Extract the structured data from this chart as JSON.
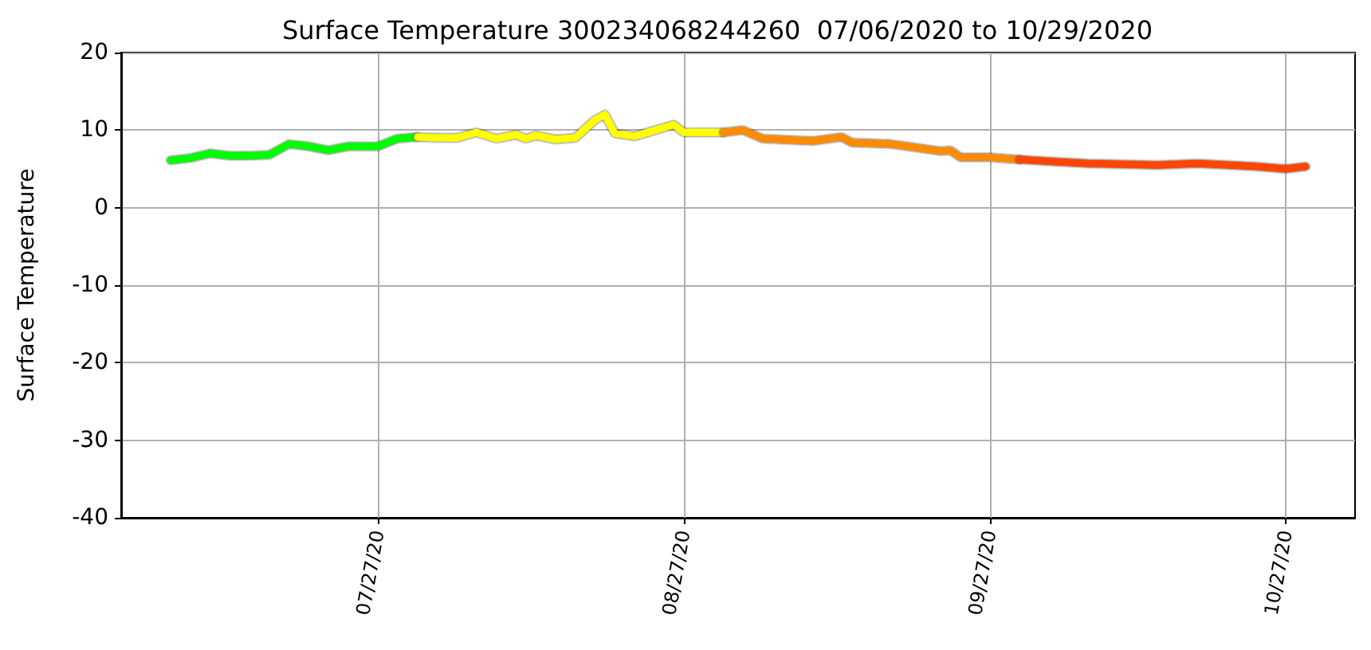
{
  "chart_data": {
    "type": "line",
    "title": "Surface Temperature 300234068244260  07/06/2020 to 10/29/2020",
    "ylabel": "Surface Temperature",
    "xlim": [
      "2020-07-01",
      "2020-11-03"
    ],
    "ylim": [
      -40,
      20
    ],
    "yticks": [
      -40,
      -30,
      -20,
      -10,
      0,
      10,
      20
    ],
    "xticks": [
      {
        "value": "2020-07-27",
        "label": "07/27/20"
      },
      {
        "value": "2020-08-27",
        "label": "08/27/20"
      },
      {
        "value": "2020-09-27",
        "label": "09/27/20"
      },
      {
        "value": "2020-10-27",
        "label": "10/27/20"
      }
    ],
    "grid": true,
    "marker": "none",
    "line_style": "solid",
    "series": [
      {
        "color": "#00ff00",
        "x": [
          "2020-07-06",
          "2020-07-08",
          "2020-07-10",
          "2020-07-12",
          "2020-07-14",
          "2020-07-16",
          "2020-07-18",
          "2020-07-20",
          "2020-07-22",
          "2020-07-24",
          "2020-07-27",
          "2020-07-29",
          "2020-07-31"
        ],
        "values": [
          6.1,
          6.4,
          7.0,
          6.7,
          6.7,
          6.8,
          8.2,
          7.9,
          7.4,
          7.9,
          7.9,
          8.9,
          9.1
        ]
      },
      {
        "color": "#ffff00",
        "x": [
          "2020-07-31",
          "2020-08-02",
          "2020-08-04",
          "2020-08-06",
          "2020-08-08",
          "2020-08-10",
          "2020-08-11",
          "2020-08-12",
          "2020-08-14",
          "2020-08-16",
          "2020-08-18",
          "2020-08-19",
          "2020-08-20",
          "2020-08-22",
          "2020-08-26",
          "2020-08-27",
          "2020-08-28",
          "2020-08-31"
        ],
        "values": [
          9.1,
          9.0,
          9.0,
          9.7,
          8.9,
          9.4,
          8.9,
          9.3,
          8.8,
          9.0,
          11.3,
          12.0,
          9.6,
          9.2,
          10.7,
          9.7,
          9.7,
          9.7
        ]
      },
      {
        "color": "#ff8c00",
        "x": [
          "2020-08-31",
          "2020-09-02",
          "2020-09-04",
          "2020-09-09",
          "2020-09-12",
          "2020-09-13",
          "2020-09-17",
          "2020-09-22",
          "2020-09-23",
          "2020-09-24",
          "2020-09-27",
          "2020-09-30"
        ],
        "values": [
          9.7,
          10.0,
          8.9,
          8.6,
          9.1,
          8.4,
          8.2,
          7.3,
          7.4,
          6.5,
          6.5,
          6.2
        ]
      },
      {
        "color": "#ff4500",
        "x": [
          "2020-09-30",
          "2020-10-04",
          "2020-10-07",
          "2020-10-14",
          "2020-10-18",
          "2020-10-24",
          "2020-10-27",
          "2020-10-29"
        ],
        "values": [
          6.2,
          5.9,
          5.7,
          5.5,
          5.7,
          5.3,
          5.0,
          5.3
        ]
      }
    ]
  }
}
